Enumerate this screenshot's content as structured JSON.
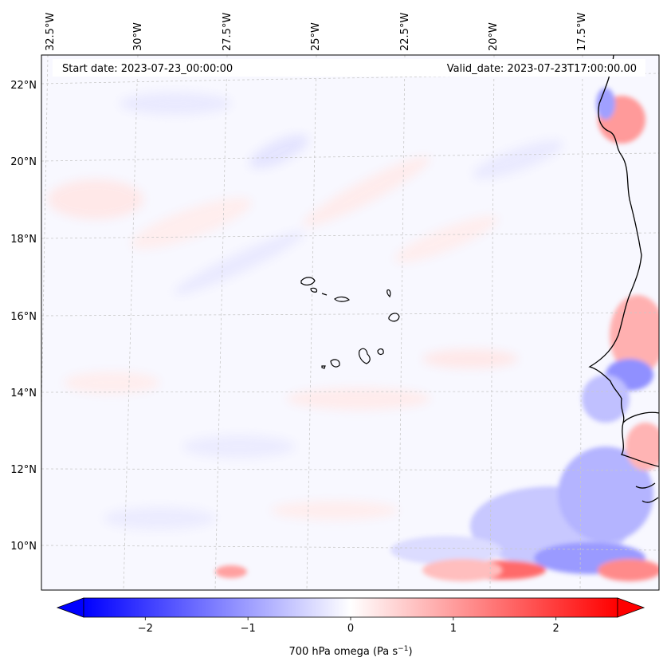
{
  "header": {
    "start_date": "Start date: 2023-07-23_00:00:00",
    "valid_date": "Valid_date: 2023-07-23T17:00:00.00"
  },
  "map": {
    "lon_labels": [
      "32.5°W",
      "30°W",
      "27.5°W",
      "25°W",
      "22.5°W",
      "20°W",
      "17.5°W"
    ],
    "lat_labels": [
      "22°N",
      "20°N",
      "18°N",
      "16°N",
      "14°N",
      "12°N",
      "10°N"
    ],
    "coastline_color": "#000000",
    "gridline_color": "#c8c8c8"
  },
  "colorbar": {
    "label": "700 hPa omega (Pa s",
    "label_sup": "−1",
    "label_end": ")",
    "ticks": [
      "−2",
      "−1",
      "0",
      "1",
      "2"
    ],
    "tick_values": [
      -2,
      -1,
      0,
      1,
      2
    ],
    "vmin": -2.6,
    "vmax": 2.6,
    "low_color": "#0000ff",
    "mid_color": "#ffffff",
    "high_color": "#ff0000",
    "extend": "both"
  },
  "colors": {
    "blue_strong": "#5a5aff",
    "blue_light": "#dcdcff",
    "red_strong": "#ff4040",
    "red_light": "#ffe0e0"
  }
}
